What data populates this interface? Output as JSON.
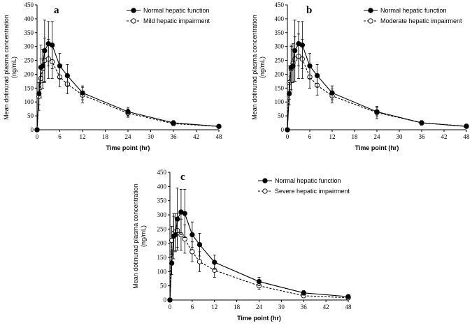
{
  "chart_data": [
    {
      "type": "line",
      "panel_label": "a",
      "xlabel": "Time point (hr)",
      "ylabel": [
        "Mean dotinurad plasma concentration",
        "(ng/mL)"
      ],
      "xlim": [
        0,
        48
      ],
      "ylim": [
        0,
        450
      ],
      "xticks": [
        0,
        6,
        12,
        18,
        24,
        30,
        36,
        42,
        48
      ],
      "yticks": [
        0,
        50,
        100,
        150,
        200,
        250,
        300,
        350,
        400,
        450
      ],
      "legend_position": "top-right",
      "series": [
        {
          "name": "Normal hepatic function",
          "marker": "filled-circle",
          "line": "solid",
          "x": [
            0,
            0.5,
            1,
            1.5,
            2,
            3,
            4,
            6,
            8,
            12,
            24,
            36,
            48
          ],
          "y": [
            0,
            130,
            225,
            230,
            285,
            310,
            305,
            230,
            195,
            133,
            65,
            25,
            12
          ],
          "err": [
            0,
            40,
            80,
            60,
            110,
            80,
            85,
            45,
            40,
            25,
            15,
            8,
            4
          ]
        },
        {
          "name": "Mild hepatic impairment",
          "marker": "open-circle",
          "line": "dashed",
          "x": [
            0,
            0.5,
            1,
            1.5,
            2,
            3,
            4,
            6,
            8,
            12,
            24,
            36,
            48
          ],
          "y": [
            0,
            120,
            185,
            220,
            250,
            255,
            245,
            190,
            165,
            125,
            60,
            22,
            12
          ],
          "err": [
            0,
            50,
            70,
            70,
            80,
            70,
            60,
            35,
            35,
            28,
            15,
            7,
            4
          ]
        }
      ]
    },
    {
      "type": "line",
      "panel_label": "b",
      "xlabel": "Time point (hr)",
      "ylabel": [
        "Mean dotinurad plasma concentration",
        "(ng/mL)"
      ],
      "xlim": [
        0,
        48
      ],
      "ylim": [
        0,
        450
      ],
      "xticks": [
        0,
        6,
        12,
        18,
        24,
        30,
        36,
        42,
        48
      ],
      "yticks": [
        0,
        50,
        100,
        150,
        200,
        250,
        300,
        350,
        400,
        450
      ],
      "legend_position": "top-right",
      "series": [
        {
          "name": "Normal hepatic function",
          "marker": "filled-circle",
          "line": "solid",
          "x": [
            0,
            0.5,
            1,
            1.5,
            2,
            3,
            4,
            6,
            8,
            12,
            24,
            36,
            48
          ],
          "y": [
            0,
            130,
            225,
            230,
            285,
            310,
            305,
            230,
            195,
            133,
            65,
            25,
            12
          ],
          "err": [
            0,
            40,
            80,
            60,
            110,
            80,
            85,
            45,
            40,
            25,
            15,
            8,
            4
          ]
        },
        {
          "name": "Moderate hepatic impairment",
          "marker": "open-circle",
          "line": "dashed",
          "x": [
            0,
            0.5,
            1,
            1.5,
            2,
            3,
            4,
            6,
            8,
            12,
            24,
            36,
            48
          ],
          "y": [
            0,
            170,
            220,
            240,
            255,
            265,
            255,
            190,
            160,
            122,
            62,
            25,
            13
          ],
          "err": [
            0,
            60,
            80,
            70,
            80,
            80,
            70,
            40,
            35,
            25,
            22,
            8,
            4
          ]
        }
      ]
    },
    {
      "type": "line",
      "panel_label": "c",
      "xlabel": "Time point (hr)",
      "ylabel": [
        "Mean dotinurad plasma concentration",
        "(ng/mL)"
      ],
      "xlim": [
        0,
        48
      ],
      "ylim": [
        0,
        450
      ],
      "xticks": [
        0,
        6,
        12,
        18,
        24,
        30,
        36,
        42,
        48
      ],
      "yticks": [
        0,
        50,
        100,
        150,
        200,
        250,
        300,
        350,
        400,
        450
      ],
      "legend_position": "top-right",
      "series": [
        {
          "name": "Normal hepatic function",
          "marker": "filled-circle",
          "line": "solid",
          "x": [
            0,
            0.5,
            1,
            1.5,
            2,
            3,
            4,
            6,
            8,
            12,
            24,
            36,
            48
          ],
          "y": [
            0,
            130,
            225,
            230,
            285,
            310,
            305,
            230,
            195,
            133,
            65,
            25,
            12
          ],
          "err": [
            0,
            40,
            80,
            60,
            110,
            80,
            85,
            45,
            40,
            25,
            15,
            8,
            4
          ]
        },
        {
          "name": "Severe hepatic impairment",
          "marker": "open-circle",
          "line": "dashed",
          "x": [
            0,
            0.5,
            1,
            1.5,
            2,
            3,
            4,
            6,
            8,
            12,
            24,
            36,
            48
          ],
          "y": [
            0,
            210,
            235,
            240,
            245,
            230,
            215,
            170,
            135,
            105,
            50,
            15,
            8
          ],
          "err": [
            0,
            50,
            60,
            65,
            60,
            55,
            50,
            35,
            35,
            25,
            12,
            5,
            3
          ]
        }
      ]
    }
  ]
}
